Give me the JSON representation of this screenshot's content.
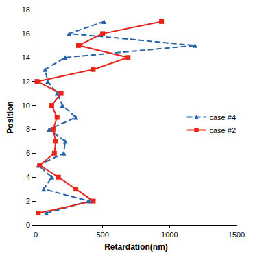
{
  "chart_data": {
    "type": "line",
    "orientation": "horizontal",
    "x_label": "Retardation(nm)",
    "y_label": "Position",
    "y": [
      1,
      2,
      3,
      4,
      5,
      6,
      7,
      8,
      9,
      10,
      11,
      12,
      13,
      14,
      15,
      16,
      17
    ],
    "series": [
      {
        "name": "case #4",
        "color": "#2563a8",
        "marker": "triangle",
        "line_style": "dashed",
        "values": [
          80,
          400,
          60,
          120,
          20,
          210,
          220,
          100,
          300,
          200,
          160,
          90,
          70,
          220,
          1190,
          250,
          510
        ]
      },
      {
        "name": "case #2",
        "color": "#e8231a",
        "marker": "square",
        "line_style": "solid",
        "values": [
          20,
          430,
          300,
          170,
          30,
          140,
          150,
          130,
          160,
          120,
          190,
          10,
          430,
          690,
          320,
          500,
          940
        ]
      }
    ],
    "xlim": [
      0,
      1500
    ],
    "xticks": [
      0,
      500,
      1000,
      1500
    ],
    "ylim": [
      0,
      18
    ],
    "yticks": [
      0,
      2,
      4,
      6,
      8,
      10,
      12,
      14,
      16,
      18
    ],
    "grid": false,
    "legend": "right"
  }
}
